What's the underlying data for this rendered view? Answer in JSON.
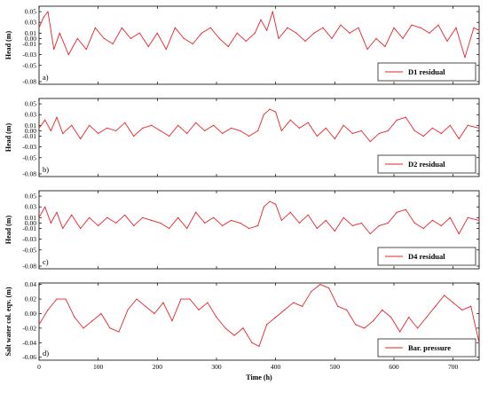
{
  "chart_data": [
    {
      "type": "line",
      "panel_label": "a)",
      "ylabel": "Head (m)",
      "xlabel": "",
      "xlim": [
        0,
        744
      ],
      "ylim": [
        -0.085,
        0.06
      ],
      "yticks": [
        0.05,
        0.03,
        0.01,
        0.0,
        -0.01,
        -0.03,
        -0.05,
        -0.08
      ],
      "ytick_labels": [
        "0.05",
        "0.03",
        "0.01",
        "0.00",
        "-0.01",
        "-0.03",
        "-0.05",
        "-0.08"
      ],
      "xticks": [
        0,
        100,
        200,
        300,
        400,
        500,
        600,
        700
      ],
      "show_xtick_labels": false,
      "legend_position": "lower-right",
      "series": [
        {
          "name": "D1 residual",
          "color": "#e8232a",
          "x": [
            0,
            8,
            15,
            25,
            35,
            50,
            65,
            80,
            95,
            110,
            125,
            140,
            155,
            170,
            185,
            200,
            215,
            230,
            245,
            260,
            275,
            290,
            305,
            320,
            335,
            350,
            365,
            375,
            385,
            395,
            405,
            420,
            435,
            450,
            465,
            480,
            495,
            510,
            525,
            540,
            555,
            570,
            585,
            600,
            615,
            630,
            645,
            660,
            675,
            690,
            705,
            720,
            735,
            744
          ],
          "y": [
            0.02,
            0.04,
            0.05,
            -0.02,
            0.01,
            -0.03,
            0.0,
            -0.02,
            0.02,
            0.0,
            -0.01,
            0.02,
            0.0,
            0.01,
            -0.015,
            0.01,
            -0.02,
            0.02,
            0.0,
            -0.01,
            0.01,
            0.02,
            0.0,
            -0.015,
            0.01,
            -0.005,
            0.01,
            0.035,
            0.015,
            0.05,
            0.0,
            0.02,
            0.01,
            -0.005,
            0.01,
            0.02,
            0.0,
            0.025,
            0.01,
            0.02,
            -0.02,
            0.0,
            -0.015,
            0.02,
            0.0,
            0.025,
            0.02,
            0.01,
            0.025,
            -0.005,
            0.02,
            -0.035,
            0.02,
            0.015
          ]
        }
      ]
    },
    {
      "type": "line",
      "panel_label": "b)",
      "ylabel": "Head (m)",
      "xlabel": "",
      "xlim": [
        0,
        744
      ],
      "ylim": [
        -0.085,
        0.06
      ],
      "yticks": [
        0.05,
        0.03,
        0.01,
        0.0,
        -0.01,
        -0.03,
        -0.05,
        -0.08
      ],
      "ytick_labels": [
        "0.05",
        "0.03",
        "0.01",
        "0.00",
        "-0.01",
        "-0.03",
        "-0.05",
        "-0.08"
      ],
      "xticks": [
        0,
        100,
        200,
        300,
        400,
        500,
        600,
        700
      ],
      "show_xtick_labels": false,
      "legend_position": "lower-right",
      "series": [
        {
          "name": "D2 residual",
          "color": "#e8232a",
          "x": [
            0,
            10,
            20,
            30,
            40,
            55,
            70,
            85,
            100,
            115,
            130,
            145,
            160,
            175,
            190,
            205,
            220,
            235,
            250,
            265,
            280,
            295,
            310,
            325,
            340,
            355,
            370,
            380,
            390,
            400,
            410,
            425,
            440,
            455,
            470,
            485,
            500,
            515,
            530,
            545,
            560,
            575,
            590,
            605,
            620,
            635,
            650,
            665,
            680,
            695,
            710,
            725,
            744
          ],
          "y": [
            0.005,
            0.02,
            0.0,
            0.025,
            -0.005,
            0.01,
            -0.015,
            0.01,
            -0.005,
            0.005,
            0.0,
            0.015,
            -0.01,
            0.005,
            0.01,
            0.0,
            -0.01,
            0.01,
            -0.005,
            0.015,
            0.0,
            0.01,
            -0.005,
            0.005,
            0.0,
            -0.01,
            0.0,
            0.03,
            0.04,
            0.035,
            0.0,
            0.02,
            0.005,
            0.015,
            -0.01,
            0.005,
            -0.015,
            0.01,
            -0.005,
            0.0,
            -0.02,
            -0.005,
            0.0,
            0.02,
            0.025,
            0.0,
            -0.01,
            0.005,
            -0.005,
            0.01,
            -0.015,
            0.01,
            0.005
          ]
        }
      ]
    },
    {
      "type": "line",
      "panel_label": "c)",
      "ylabel": "Head (m)",
      "xlabel": "",
      "xlim": [
        0,
        744
      ],
      "ylim": [
        -0.085,
        0.06
      ],
      "yticks": [
        0.05,
        0.03,
        0.01,
        0.0,
        -0.01,
        -0.03,
        -0.05,
        -0.08
      ],
      "ytick_labels": [
        "0.05",
        "0.03",
        "0.01",
        "0.00",
        "-0.01",
        "-0.03",
        "-0.05",
        "-0.08"
      ],
      "xticks": [
        0,
        100,
        200,
        300,
        400,
        500,
        600,
        700
      ],
      "show_xtick_labels": false,
      "legend_position": "lower-right",
      "series": [
        {
          "name": "D4 residual",
          "color": "#e8232a",
          "x": [
            0,
            10,
            20,
            30,
            40,
            55,
            70,
            85,
            100,
            115,
            130,
            145,
            160,
            175,
            190,
            205,
            220,
            235,
            250,
            265,
            280,
            295,
            310,
            325,
            340,
            355,
            370,
            380,
            390,
            400,
            410,
            425,
            440,
            455,
            470,
            485,
            500,
            515,
            530,
            545,
            560,
            575,
            590,
            605,
            620,
            635,
            650,
            665,
            680,
            695,
            710,
            725,
            744
          ],
          "y": [
            0.01,
            0.03,
            0.0,
            0.02,
            -0.01,
            0.015,
            -0.01,
            0.01,
            -0.005,
            0.01,
            0.0,
            0.015,
            -0.005,
            0.01,
            0.005,
            0.0,
            -0.01,
            0.01,
            -0.01,
            0.02,
            0.0,
            0.01,
            -0.005,
            0.005,
            0.0,
            -0.01,
            -0.005,
            0.03,
            0.04,
            0.035,
            0.005,
            0.02,
            0.0,
            0.015,
            -0.01,
            0.005,
            -0.015,
            0.01,
            -0.005,
            0.0,
            -0.02,
            -0.005,
            0.0,
            0.02,
            0.025,
            0.0,
            -0.01,
            0.005,
            -0.005,
            0.01,
            -0.02,
            0.01,
            0.005
          ]
        }
      ]
    },
    {
      "type": "line",
      "panel_label": "d)",
      "ylabel": "Salt water col. eqv. (m)",
      "xlabel": "Time (h)",
      "xlim": [
        0,
        744
      ],
      "ylim": [
        -0.064,
        0.042
      ],
      "yticks": [
        0.04,
        0.02,
        0.0,
        -0.02,
        -0.04,
        -0.06
      ],
      "ytick_labels": [
        "0.04",
        "0.02",
        "0.00",
        "-0.02",
        "-0.04",
        "-0.06"
      ],
      "xticks": [
        0,
        100,
        200,
        300,
        400,
        500,
        600,
        700
      ],
      "xtick_labels": [
        "0",
        "100",
        "200",
        "300",
        "400",
        "500",
        "600",
        "700"
      ],
      "show_xtick_labels": true,
      "legend_position": "lower-right",
      "series": [
        {
          "name": "Bar. pressure",
          "color": "#e8232a",
          "x": [
            0,
            15,
            30,
            45,
            60,
            75,
            90,
            105,
            120,
            135,
            150,
            165,
            180,
            195,
            210,
            225,
            240,
            255,
            270,
            285,
            300,
            315,
            330,
            345,
            360,
            372,
            385,
            400,
            415,
            430,
            445,
            460,
            475,
            490,
            505,
            520,
            535,
            550,
            565,
            580,
            595,
            610,
            625,
            640,
            655,
            670,
            685,
            700,
            715,
            730,
            744
          ],
          "y": [
            -0.015,
            0.005,
            0.02,
            0.02,
            -0.005,
            -0.02,
            -0.01,
            0.0,
            -0.02,
            -0.025,
            0.005,
            0.02,
            0.01,
            0.0,
            0.015,
            -0.01,
            0.02,
            0.02,
            0.005,
            0.015,
            -0.005,
            -0.02,
            -0.03,
            -0.02,
            -0.04,
            -0.045,
            -0.015,
            -0.005,
            0.005,
            0.015,
            0.01,
            0.03,
            0.04,
            0.035,
            0.01,
            0.005,
            -0.015,
            -0.02,
            -0.01,
            0.005,
            -0.005,
            -0.025,
            -0.005,
            -0.02,
            -0.005,
            0.01,
            0.025,
            0.015,
            0.005,
            0.01,
            -0.04
          ]
        }
      ]
    }
  ]
}
